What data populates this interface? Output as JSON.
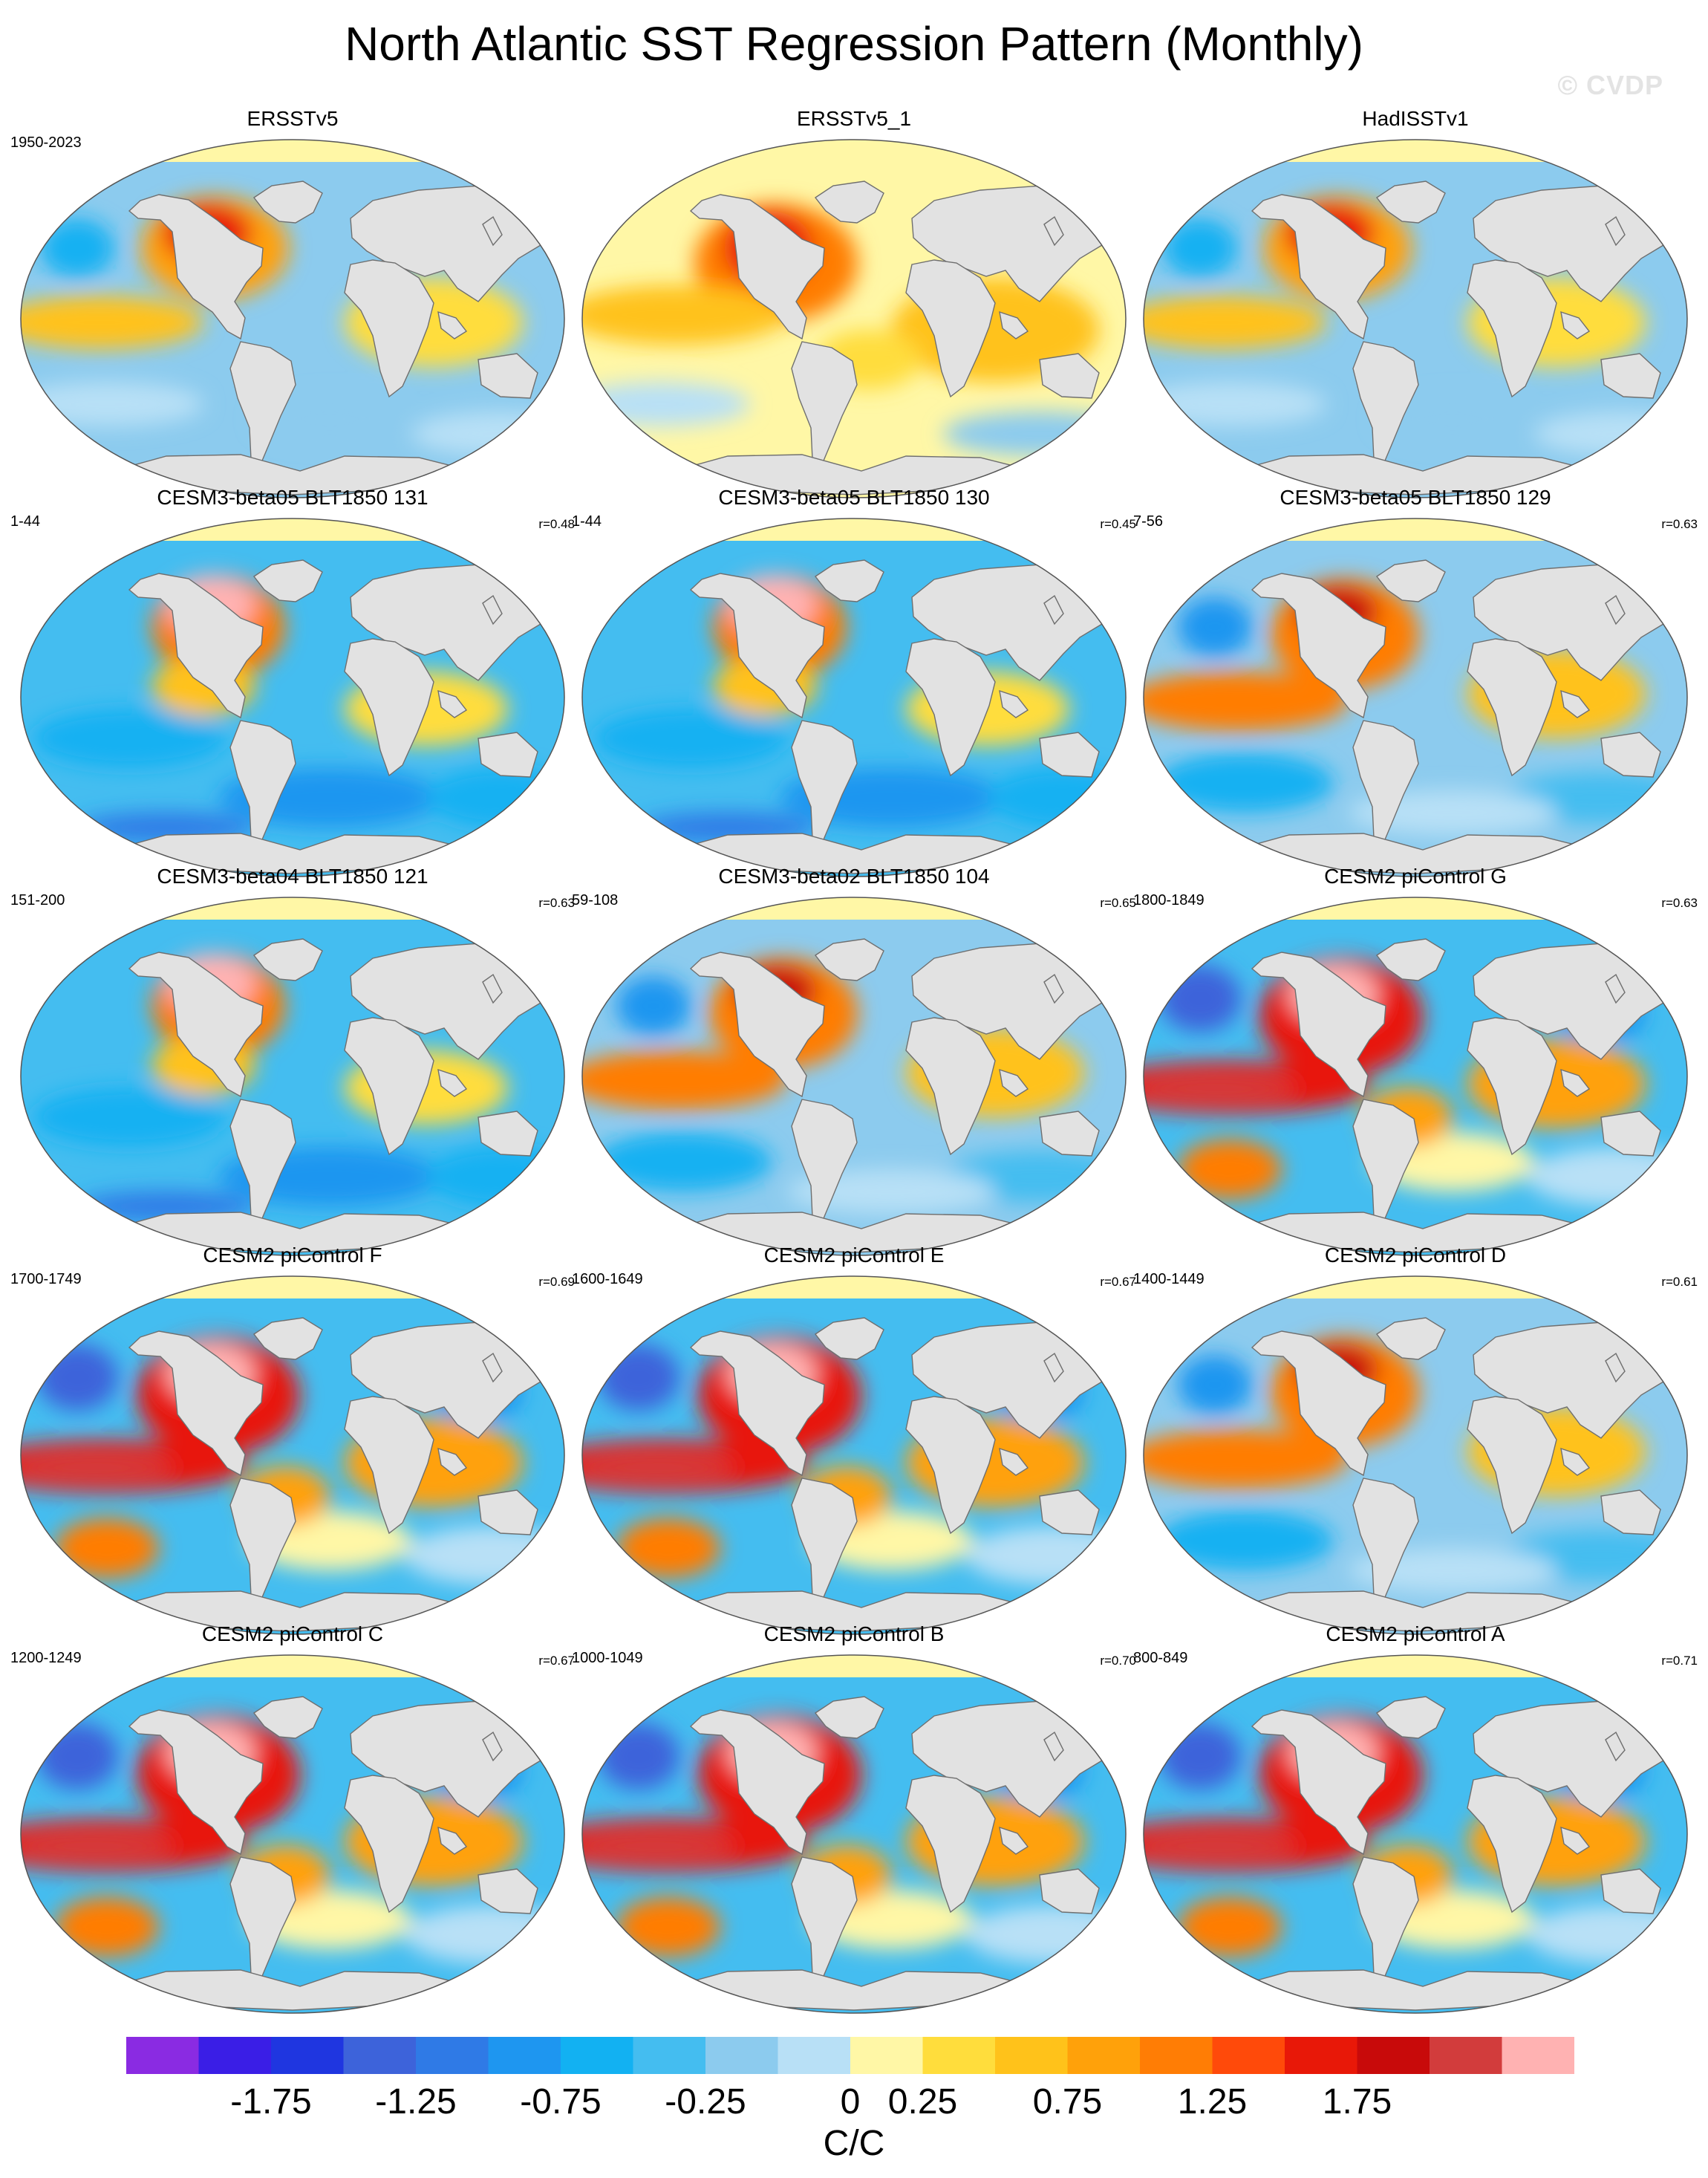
{
  "title": "North Atlantic SST Regression Pattern (Monthly)",
  "watermark": "© CVDP",
  "colors": {
    "land": "#e2e2e2",
    "coast": "#6f6f6f",
    "scale": [
      "#8a2be2",
      "#3a1ee6",
      "#1f36e0",
      "#3d63da",
      "#2f7ae6",
      "#1e96f0",
      "#12b1f2",
      "#44bdf0",
      "#8ccbee",
      "#b8e0f6",
      "#fff7a6",
      "#ffdd3c",
      "#ffc21a",
      "#ffa10a",
      "#ff7d05",
      "#ff4a0a",
      "#e81808",
      "#c80a0a",
      "#d23c3c",
      "#ffb2b2"
    ]
  },
  "colorbar": {
    "tick_labels": [
      "-1.75",
      "-1.25",
      "-0.75",
      "-0.25",
      "0",
      "0.25",
      "0.75",
      "1.25",
      "1.75"
    ],
    "units": "C/C"
  },
  "panels": [
    {
      "name": "ERSSTv5",
      "years": "1950-2023",
      "corr": "",
      "style": "obs"
    },
    {
      "name": "ERSSTv5_1",
      "years": "",
      "corr": "",
      "style": "obs-warm"
    },
    {
      "name": "HadISSTv1",
      "years": "",
      "corr": "",
      "style": "obs"
    },
    {
      "name": "CESM3-beta05 BLT1850 131",
      "years": "1-44",
      "corr": "r=0.48",
      "style": "cool"
    },
    {
      "name": "CESM3-beta05 BLT1850 130",
      "years": "1-44",
      "corr": "r=0.45",
      "style": "cool"
    },
    {
      "name": "CESM3-beta05 BLT1850 129",
      "years": "7-56",
      "corr": "r=0.63",
      "style": "mixed"
    },
    {
      "name": "CESM3-beta04 BLT1850 121",
      "years": "151-200",
      "corr": "r=0.63",
      "style": "cool"
    },
    {
      "name": "CESM3-beta02 BLT1850 104",
      "years": "59-108",
      "corr": "r=0.65",
      "style": "mixed"
    },
    {
      "name": "CESM2 piControl G",
      "years": "1800-1849",
      "corr": "r=0.63",
      "style": "strong"
    },
    {
      "name": "CESM2 piControl F",
      "years": "1700-1749",
      "corr": "r=0.69",
      "style": "strong"
    },
    {
      "name": "CESM2 piControl E",
      "years": "1600-1649",
      "corr": "r=0.67",
      "style": "strong"
    },
    {
      "name": "CESM2 piControl D",
      "years": "1400-1449",
      "corr": "r=0.61",
      "style": "mixed"
    },
    {
      "name": "CESM2 piControl C",
      "years": "1200-1249",
      "corr": "r=0.67",
      "style": "strong"
    },
    {
      "name": "CESM2 piControl B",
      "years": "1000-1049",
      "corr": "r=0.70",
      "style": "strong"
    },
    {
      "name": "CESM2 piControl A",
      "years": "800-849",
      "corr": "r=0.71",
      "style": "strong"
    }
  ]
}
